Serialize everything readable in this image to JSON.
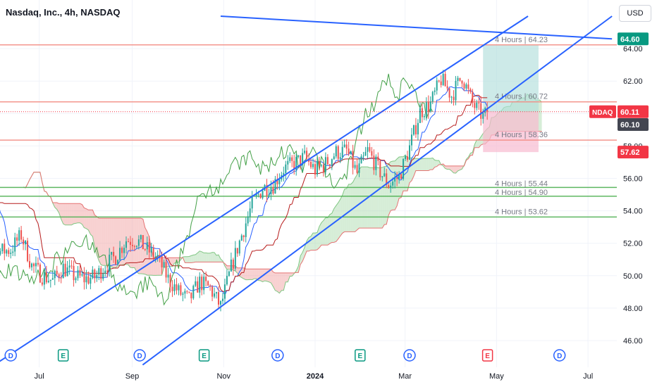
{
  "header": {
    "title": "Nasdaq, Inc., 4h, NASDAQ",
    "currency_button": "USD"
  },
  "colors": {
    "price_up": "#26a69a",
    "price_down": "#ef5350",
    "channel": "#2962ff",
    "resistance": "#f28b82",
    "support": "#4caf50",
    "ichimoku_lagging": "#43a047",
    "ichimoku_base": "#b71c1c",
    "ichimoku_conversion": "#2962ff",
    "cloud_bull": "#a5d6a7",
    "cloud_bear": "#ef9a9a",
    "tp_zone": "#b2dfdb",
    "sl_zone": "#f8bbd0"
  },
  "chart_data": {
    "type": "candlestick",
    "symbol": "NDAQ",
    "timeframe": "4h",
    "y_axis": {
      "range": [
        44.8,
        66.0
      ],
      "tick_labels": [
        "46.00",
        "48.00",
        "50.00",
        "52.00",
        "54.00",
        "56.00",
        "58.00",
        "60.00",
        "62.00",
        "64.00"
      ]
    },
    "x_axis": {
      "tick_labels": [
        "Jul",
        "Sep",
        "Nov",
        "2024",
        "Mar",
        "May",
        "Jul"
      ],
      "tick_dates": [
        "2023-07-01",
        "2023-09-01",
        "2023-11-01",
        "2024-01-01",
        "2024-03-01",
        "2024-05-01",
        "2024-07-01"
      ]
    },
    "price_labels": [
      {
        "value": "64.60",
        "kind": "channel-top",
        "color": "#089981"
      },
      {
        "value": "60.11",
        "kind": "last-price",
        "color": "#f23645",
        "tag": "NDAQ"
      },
      {
        "value": "60.10",
        "kind": "prev-close",
        "color": "#434651"
      },
      {
        "value": "57.62",
        "kind": "stop-loss",
        "color": "#f23645"
      }
    ],
    "horizontal_levels": [
      {
        "label": "4 Hours | 64.23",
        "value": 64.23,
        "color": "#f28b82"
      },
      {
        "label": "4 Hours | 60.72",
        "value": 60.72,
        "color": "#f28b82"
      },
      {
        "label": "4 Hours | 58.36",
        "value": 58.36,
        "color": "#f28b82"
      },
      {
        "label": "4 Hours | 55.44",
        "value": 55.44,
        "color": "#4caf50"
      },
      {
        "label": "4 Hours | 54.90",
        "value": 54.9,
        "color": "#4caf50"
      },
      {
        "label": "4 Hours | 53.62",
        "value": 53.62,
        "color": "#4caf50"
      }
    ],
    "trend_lines": [
      {
        "name": "channel-upper",
        "points": [
          [
            "2023-06-01",
            44.5
          ],
          [
            "2024-05-22",
            66.0
          ]
        ]
      },
      {
        "name": "channel-lower",
        "points": [
          [
            "2023-09-08",
            44.5
          ],
          [
            "2024-07-17",
            66.0
          ]
        ]
      },
      {
        "name": "descending-line",
        "points": [
          [
            "2023-10-30",
            66.0
          ],
          [
            "2024-07-17",
            64.6
          ]
        ]
      }
    ],
    "position_box": {
      "entry": 60.11,
      "target": 64.2,
      "stop": 57.62,
      "start": "2024-04-22",
      "end": "2024-05-29"
    },
    "last_price": 60.11,
    "events": [
      {
        "date": "2023-06-12",
        "type": "D"
      },
      {
        "date": "2023-07-17",
        "type": "E"
      },
      {
        "date": "2023-09-06",
        "type": "D"
      },
      {
        "date": "2023-10-19",
        "type": "E"
      },
      {
        "date": "2023-12-07",
        "type": "D"
      },
      {
        "date": "2024-01-31",
        "type": "E"
      },
      {
        "date": "2024-03-04",
        "type": "D"
      },
      {
        "date": "2024-04-25",
        "type": "E"
      },
      {
        "date": "2024-06-12",
        "type": "D"
      },
      {
        "date": "2024-07-24",
        "type": "E"
      }
    ],
    "candle_anchors": [
      [
        "2023-05-15",
        55.6
      ],
      [
        "2023-05-22",
        57.4
      ],
      [
        "2023-05-29",
        53.0
      ],
      [
        "2023-06-05",
        51.5
      ],
      [
        "2023-06-12",
        51.6
      ],
      [
        "2023-06-19",
        52.5
      ],
      [
        "2023-06-26",
        50.6
      ],
      [
        "2023-07-03",
        50.0
      ],
      [
        "2023-07-10",
        49.7
      ],
      [
        "2023-07-17",
        50.5
      ],
      [
        "2023-07-24",
        50.0
      ],
      [
        "2023-07-31",
        49.8
      ],
      [
        "2023-08-07",
        49.9
      ],
      [
        "2023-08-14",
        50.6
      ],
      [
        "2023-08-21",
        51.2
      ],
      [
        "2023-08-28",
        52.2
      ],
      [
        "2023-09-04",
        52.2
      ],
      [
        "2023-09-11",
        51.6
      ],
      [
        "2023-09-18",
        51.1
      ],
      [
        "2023-09-25",
        49.8
      ],
      [
        "2023-10-02",
        49.0
      ],
      [
        "2023-10-09",
        48.5
      ],
      [
        "2023-10-16",
        49.6
      ],
      [
        "2023-10-23",
        49.2
      ],
      [
        "2023-10-30",
        48.1
      ],
      [
        "2023-11-06",
        50.5
      ],
      [
        "2023-11-13",
        52.5
      ],
      [
        "2023-11-20",
        54.4
      ],
      [
        "2023-11-27",
        55.4
      ],
      [
        "2023-12-04",
        55.6
      ],
      [
        "2023-12-11",
        56.6
      ],
      [
        "2023-12-18",
        56.9
      ],
      [
        "2023-12-25",
        57.3
      ],
      [
        "2024-01-01",
        56.5
      ],
      [
        "2024-01-08",
        56.9
      ],
      [
        "2024-01-15",
        57.6
      ],
      [
        "2024-01-22",
        57.7
      ],
      [
        "2024-01-29",
        56.3
      ],
      [
        "2024-02-05",
        57.7
      ],
      [
        "2024-02-12",
        56.6
      ],
      [
        "2024-02-19",
        55.6
      ],
      [
        "2024-02-26",
        56.1
      ],
      [
        "2024-03-04",
        57.9
      ],
      [
        "2024-03-11",
        60.1
      ],
      [
        "2024-03-18",
        60.6
      ],
      [
        "2024-03-25",
        62.1
      ],
      [
        "2024-04-01",
        61.1
      ],
      [
        "2024-04-08",
        62.3
      ],
      [
        "2024-04-15",
        60.6
      ],
      [
        "2024-04-22",
        59.8
      ],
      [
        "2024-04-26",
        60.11
      ]
    ]
  }
}
